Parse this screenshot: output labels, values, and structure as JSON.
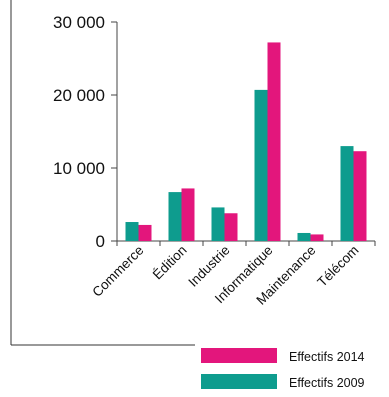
{
  "chart_data": {
    "type": "bar",
    "categories": [
      "Commerce",
      "Édition",
      "Industrie",
      "Informatique",
      "Maintenance",
      "Télécom"
    ],
    "series": [
      {
        "name": "Effectifs 2009",
        "color": "#0e9c8e",
        "values": [
          2600,
          6700,
          4600,
          20700,
          1100,
          13000
        ]
      },
      {
        "name": "Effectifs 2014",
        "color": "#e3167c",
        "values": [
          2200,
          7200,
          3800,
          27200,
          900,
          12300
        ]
      }
    ],
    "y_ticks": [
      {
        "value": 0,
        "label": "0"
      },
      {
        "value": 10000,
        "label": "10 000"
      },
      {
        "value": 20000,
        "label": "20 000"
      },
      {
        "value": 30000,
        "label": "30 000"
      }
    ],
    "ylim": [
      0,
      30000
    ],
    "grid": false,
    "legend": {
      "placement": "bottom-right",
      "order": [
        "Effectifs 2014",
        "Effectifs 2009"
      ]
    },
    "title": "",
    "xlabel": "",
    "ylabel": ""
  }
}
